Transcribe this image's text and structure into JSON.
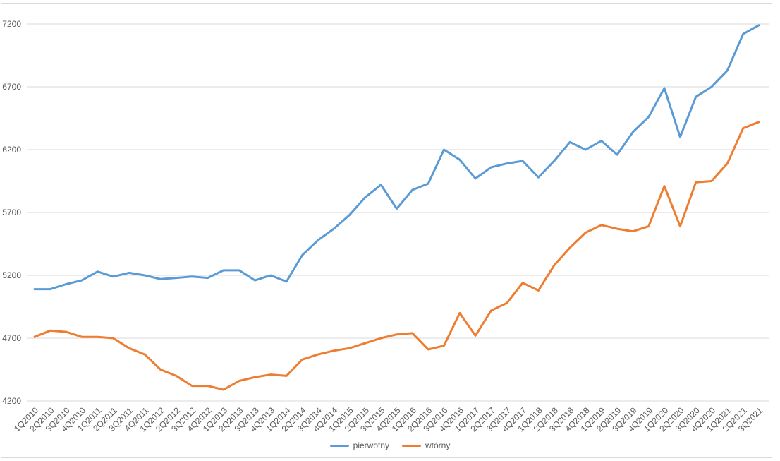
{
  "chart_data": {
    "type": "line",
    "title": "",
    "xlabel": "",
    "ylabel": "",
    "ylim": [
      4200,
      7200
    ],
    "y_ticks": [
      7200,
      6700,
      6200,
      5700,
      5200,
      4700,
      4200
    ],
    "grid": true,
    "legend_position": "bottom",
    "categories": [
      "1Q2010",
      "2Q2010",
      "3Q2010",
      "4Q2010",
      "1Q2011",
      "2Q2011",
      "3Q2011",
      "4Q2011",
      "1Q2012",
      "2Q2012",
      "3Q2012",
      "4Q2012",
      "1Q2013",
      "2Q2013",
      "3Q2013",
      "4Q2013",
      "1Q2014",
      "2Q2014",
      "3Q2014",
      "4Q2014",
      "1Q2015",
      "2Q2015",
      "3Q2015",
      "4Q2015",
      "1Q2016",
      "2Q2016",
      "3Q2016",
      "4Q2016",
      "1Q2017",
      "2Q2017",
      "3Q2017",
      "4Q2017",
      "1Q2018",
      "2Q2018",
      "3Q2018",
      "4Q2018",
      "1Q2019",
      "2Q2019",
      "3Q2019",
      "4Q2019",
      "1Q2020",
      "2Q2020",
      "3Q2020",
      "4Q2020",
      "1Q2021",
      "2Q2021",
      "3Q2021"
    ],
    "series": [
      {
        "name": "pierwotny",
        "color": "#5B9BD5",
        "values": [
          5090,
          5090,
          5130,
          5160,
          5230,
          5190,
          5220,
          5200,
          5170,
          5180,
          5190,
          5180,
          5240,
          5240,
          5160,
          5200,
          5150,
          5360,
          5480,
          5570,
          5680,
          5820,
          5920,
          5730,
          5880,
          5930,
          6200,
          6120,
          5970,
          6060,
          6090,
          6110,
          5980,
          6110,
          6260,
          6200,
          6270,
          6160,
          6340,
          6460,
          6690,
          6300,
          6620,
          6700,
          6830,
          7120,
          7190
        ]
      },
      {
        "name": "wtórny",
        "color": "#ED7D31",
        "values": [
          4710,
          4760,
          4750,
          4710,
          4710,
          4700,
          4620,
          4570,
          4450,
          4400,
          4320,
          4320,
          4290,
          4360,
          4390,
          4410,
          4400,
          4530,
          4570,
          4600,
          4620,
          4660,
          4700,
          4730,
          4740,
          4610,
          4640,
          4900,
          4720,
          4920,
          4980,
          5140,
          5080,
          5280,
          5420,
          5540,
          5600,
          5570,
          5550,
          5590,
          5910,
          5590,
          5940,
          5950,
          6090,
          6370,
          6420
        ]
      }
    ],
    "colors": {
      "gridline": "#D9D9D9",
      "axis_text": "#595959",
      "chart_border": "#D9D9D9",
      "background": "#FFFFFF"
    }
  }
}
